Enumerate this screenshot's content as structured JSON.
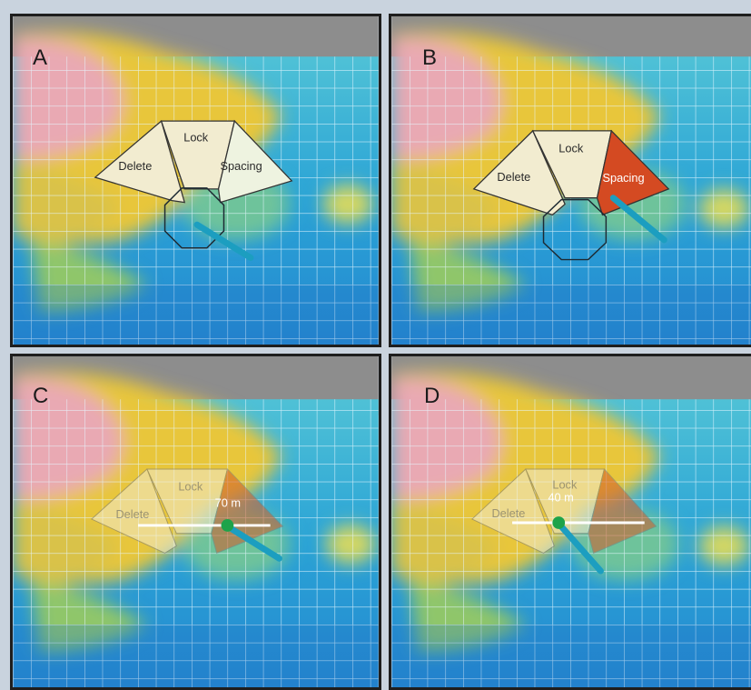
{
  "panels": [
    {
      "letter": "A",
      "menu": {
        "delete": "Delete",
        "lock": "Lock",
        "spacing": "Spacing"
      }
    },
    {
      "letter": "B",
      "menu": {
        "delete": "Delete",
        "lock": "Lock",
        "spacing": "Spacing"
      }
    },
    {
      "letter": "C",
      "menu": {
        "delete": "Delete",
        "lock": "Lock",
        "spacing": ""
      },
      "slider_value": "70  m"
    },
    {
      "letter": "D",
      "menu": {
        "delete": "Delete",
        "lock": "Lock",
        "spacing": ""
      },
      "slider_value": "40  m"
    }
  ],
  "colors": {
    "grid_line": "#dff4ff",
    "ocean": "#2aa3d6",
    "terrain_yellow": "#e9c43a",
    "terrain_pink": "#e9a9b3",
    "menu_fill": "#f2ecd0",
    "active_segment": "#d44a22",
    "pointer": "#1c9ec0",
    "slider_handle": "#1ea34a"
  },
  "icons": [
    "pie-menu",
    "octagon-center",
    "stylus-pointer",
    "slider-handle"
  ]
}
